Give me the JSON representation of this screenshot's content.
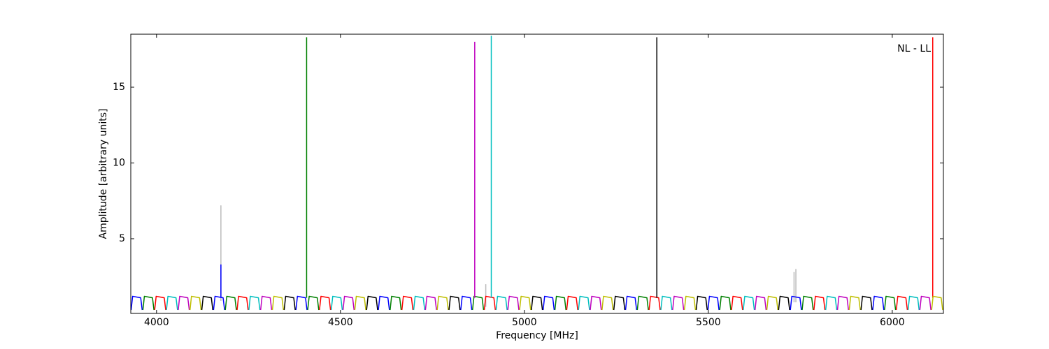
{
  "chart_data": {
    "type": "line",
    "x_label": "Frequency [MHz]",
    "y_label": "Amplitude [arbitrary units]",
    "annotation": "NL - LL",
    "xlim": [
      3930,
      6139
    ],
    "ylim": [
      0.07,
      18.5
    ],
    "xticks": [
      4000,
      4500,
      5000,
      5500,
      6000
    ],
    "yticks": [
      5,
      10,
      15
    ],
    "grid": false,
    "series": [
      {
        "color": "#bbbbbb",
        "x": [
          4175,
          4175,
          null,
          4895,
          4895,
          null,
          5733,
          5733,
          null,
          5738,
          5738
        ],
        "values": [
          0.9,
          7.2,
          null,
          0.5,
          2.0,
          null,
          0.8,
          2.8,
          null,
          0.8,
          3.0
        ]
      },
      {
        "color": "#0000ff",
        "x": [
          3931,
          3935,
          3957,
          3961,
          null,
          4155,
          4159,
          4181,
          4185,
          null,
          4379,
          4383,
          4405,
          4409,
          null,
          4603,
          4607,
          4629,
          4633,
          null,
          4827,
          4831,
          4853,
          4857,
          null,
          5051,
          5055,
          5077,
          5081,
          null,
          5275,
          5279,
          5301,
          5305,
          null,
          5499,
          5503,
          5525,
          5529,
          null,
          5723,
          5727,
          5749,
          5753,
          null,
          5947,
          5951,
          5973,
          5977,
          null,
          4175,
          4175
        ],
        "values": [
          0.3,
          1.2,
          1.1,
          0.3,
          null,
          0.3,
          1.2,
          1.1,
          0.3,
          null,
          0.3,
          1.2,
          1.1,
          0.3,
          null,
          0.3,
          1.2,
          1.1,
          0.3,
          null,
          0.3,
          1.2,
          1.1,
          0.3,
          null,
          0.3,
          1.2,
          1.1,
          0.3,
          null,
          0.3,
          1.2,
          1.1,
          0.3,
          null,
          0.3,
          1.2,
          1.1,
          0.3,
          null,
          0.3,
          1.2,
          1.1,
          0.3,
          null,
          0.3,
          1.2,
          1.1,
          0.3,
          null,
          1.1,
          3.3
        ]
      },
      {
        "color": "#008000",
        "x": [
          3963,
          3967,
          3989,
          3993,
          null,
          4187,
          4191,
          4213,
          4217,
          null,
          4411,
          4415,
          4437,
          4441,
          null,
          4635,
          4639,
          4661,
          4665,
          null,
          4859,
          4863,
          4885,
          4889,
          null,
          5083,
          5087,
          5109,
          5113,
          null,
          5307,
          5311,
          5333,
          5337,
          null,
          5531,
          5535,
          5557,
          5561,
          null,
          5755,
          5759,
          5781,
          5785,
          null,
          5979,
          5983,
          6005,
          6009,
          null,
          4408,
          4408
        ],
        "values": [
          0.3,
          1.2,
          1.1,
          0.3,
          null,
          0.3,
          1.2,
          1.1,
          0.3,
          null,
          0.3,
          1.2,
          1.1,
          0.3,
          null,
          0.3,
          1.2,
          1.1,
          0.3,
          null,
          0.3,
          1.2,
          1.1,
          0.3,
          null,
          0.3,
          1.2,
          1.1,
          0.3,
          null,
          0.3,
          1.2,
          1.1,
          0.3,
          null,
          0.3,
          1.2,
          1.1,
          0.3,
          null,
          0.3,
          1.2,
          1.1,
          0.3,
          null,
          0.3,
          1.2,
          1.1,
          0.3,
          null,
          1.1,
          18.3
        ]
      },
      {
        "color": "#ff0000",
        "x": [
          3995,
          3999,
          4021,
          4025,
          null,
          4219,
          4223,
          4245,
          4249,
          null,
          4443,
          4447,
          4469,
          4473,
          null,
          4667,
          4671,
          4693,
          4697,
          null,
          4891,
          4895,
          4917,
          4921,
          null,
          5115,
          5119,
          5141,
          5145,
          null,
          5339,
          5343,
          5365,
          5369,
          null,
          5563,
          5567,
          5589,
          5593,
          null,
          5787,
          5791,
          5813,
          5817,
          null,
          6011,
          6015,
          6037,
          6041,
          null,
          6110,
          6110
        ],
        "values": [
          0.3,
          1.2,
          1.1,
          0.3,
          null,
          0.3,
          1.2,
          1.1,
          0.3,
          null,
          0.3,
          1.2,
          1.1,
          0.3,
          null,
          0.3,
          1.2,
          1.1,
          0.3,
          null,
          0.3,
          1.2,
          1.1,
          0.3,
          null,
          0.3,
          1.2,
          1.1,
          0.3,
          null,
          0.3,
          1.2,
          1.1,
          0.3,
          null,
          0.3,
          1.2,
          1.1,
          0.3,
          null,
          0.3,
          1.2,
          1.1,
          0.3,
          null,
          0.3,
          1.2,
          1.1,
          0.3,
          null,
          1.1,
          18.3
        ]
      },
      {
        "color": "#00bfbf",
        "x": [
          4027,
          4031,
          4053,
          4057,
          null,
          4251,
          4255,
          4277,
          4281,
          null,
          4475,
          4479,
          4501,
          4505,
          null,
          4699,
          4703,
          4725,
          4729,
          null,
          4923,
          4927,
          4949,
          4953,
          null,
          5147,
          5151,
          5173,
          5177,
          null,
          5371,
          5375,
          5397,
          5401,
          null,
          5595,
          5599,
          5621,
          5625,
          null,
          5819,
          5823,
          5845,
          5849,
          null,
          6043,
          6047,
          6069,
          6073,
          null,
          4910,
          4910
        ],
        "values": [
          0.3,
          1.2,
          1.1,
          0.3,
          null,
          0.3,
          1.2,
          1.1,
          0.3,
          null,
          0.3,
          1.2,
          1.1,
          0.3,
          null,
          0.3,
          1.2,
          1.1,
          0.3,
          null,
          0.3,
          1.2,
          1.1,
          0.3,
          null,
          0.3,
          1.2,
          1.1,
          0.3,
          null,
          0.3,
          1.2,
          1.1,
          0.3,
          null,
          0.3,
          1.2,
          1.1,
          0.3,
          null,
          0.3,
          1.2,
          1.1,
          0.3,
          null,
          0.3,
          1.2,
          1.1,
          0.3,
          null,
          1.1,
          18.4
        ]
      },
      {
        "color": "#bf00bf",
        "x": [
          4059,
          4063,
          4085,
          4089,
          null,
          4283,
          4287,
          4309,
          4313,
          null,
          4507,
          4511,
          4533,
          4537,
          null,
          4731,
          4735,
          4757,
          4761,
          null,
          4955,
          4959,
          4981,
          4985,
          null,
          5179,
          5183,
          5205,
          5209,
          null,
          5403,
          5407,
          5429,
          5433,
          null,
          5627,
          5631,
          5653,
          5657,
          null,
          5851,
          5855,
          5877,
          5881,
          null,
          6075,
          6079,
          6101,
          6105,
          null,
          4865,
          4865
        ],
        "values": [
          0.3,
          1.2,
          1.1,
          0.3,
          null,
          0.3,
          1.2,
          1.1,
          0.3,
          null,
          0.3,
          1.2,
          1.1,
          0.3,
          null,
          0.3,
          1.2,
          1.1,
          0.3,
          null,
          0.3,
          1.2,
          1.1,
          0.3,
          null,
          0.3,
          1.2,
          1.1,
          0.3,
          null,
          0.3,
          1.2,
          1.1,
          0.3,
          null,
          0.3,
          1.2,
          1.1,
          0.3,
          null,
          0.3,
          1.2,
          1.1,
          0.3,
          null,
          0.3,
          1.2,
          1.1,
          0.3,
          null,
          1.1,
          18.0
        ]
      },
      {
        "color": "#bfbf00",
        "x": [
          4091,
          4095,
          4117,
          4121,
          null,
          4315,
          4319,
          4341,
          4345,
          null,
          4539,
          4543,
          4565,
          4569,
          null,
          4763,
          4767,
          4789,
          4793,
          null,
          4987,
          4991,
          5013,
          5017,
          null,
          5211,
          5215,
          5237,
          5241,
          null,
          5435,
          5439,
          5461,
          5465,
          null,
          5659,
          5663,
          5685,
          5689,
          null,
          5883,
          5887,
          5909,
          5913,
          null,
          6107,
          6111,
          6133,
          6137
        ],
        "values": [
          0.3,
          1.2,
          1.1,
          0.3,
          null,
          0.3,
          1.2,
          1.1,
          0.3,
          null,
          0.3,
          1.2,
          1.1,
          0.3,
          null,
          0.3,
          1.2,
          1.1,
          0.3,
          null,
          0.3,
          1.2,
          1.1,
          0.3,
          null,
          0.3,
          1.2,
          1.1,
          0.3,
          null,
          0.3,
          1.2,
          1.1,
          0.3,
          null,
          0.3,
          1.2,
          1.1,
          0.3,
          null,
          0.3,
          1.2,
          1.1,
          0.3,
          null,
          0.3,
          1.2,
          1.1,
          0.3
        ]
      },
      {
        "color": "#000000",
        "x": [
          4123,
          4127,
          4149,
          4153,
          null,
          4347,
          4351,
          4373,
          4377,
          null,
          4571,
          4575,
          4597,
          4601,
          null,
          4795,
          4799,
          4821,
          4825,
          null,
          5019,
          5023,
          5045,
          5049,
          null,
          5243,
          5247,
          5269,
          5273,
          null,
          5467,
          5471,
          5493,
          5497,
          null,
          5691,
          5695,
          5717,
          5721,
          null,
          5915,
          5919,
          5941,
          5945,
          null,
          5360,
          5360
        ],
        "values": [
          0.3,
          1.2,
          1.1,
          0.3,
          null,
          0.3,
          1.2,
          1.1,
          0.3,
          null,
          0.3,
          1.2,
          1.1,
          0.3,
          null,
          0.3,
          1.2,
          1.1,
          0.3,
          null,
          0.3,
          1.2,
          1.1,
          0.3,
          null,
          0.3,
          1.2,
          1.1,
          0.3,
          null,
          0.3,
          1.2,
          1.1,
          0.3,
          null,
          0.3,
          1.2,
          1.1,
          0.3,
          null,
          0.3,
          1.2,
          1.1,
          0.3,
          null,
          1.1,
          18.3
        ]
      }
    ]
  }
}
